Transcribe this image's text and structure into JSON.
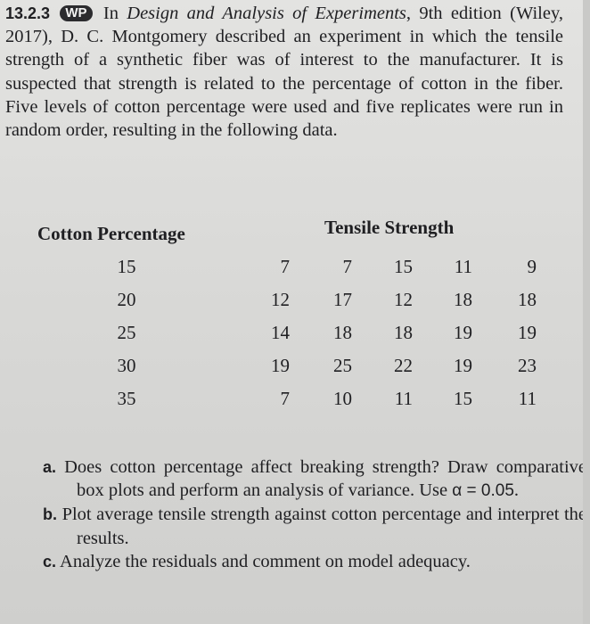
{
  "problem": {
    "number": "13.2.3",
    "badge": "WP",
    "lead": "In",
    "book_title": "Design and Analysis of Experiments",
    "text": ", 9th edition (Wiley, 2017), D. C. Montgomery described an experiment in which the tensile strength of a synthetic fiber was of interest to the manufacturer. It is suspected that strength is related to the percentage of cotton in the fiber. Five levels of cotton percentage were used and five replicates were run in random order, resulting in the following data."
  },
  "table": {
    "col1_header": "Cotton Percentage",
    "col2_header": "Tensile Strength",
    "rows": [
      {
        "pct": "15",
        "values": [
          "7",
          "7",
          "15",
          "11",
          "9"
        ]
      },
      {
        "pct": "20",
        "values": [
          "12",
          "17",
          "12",
          "18",
          "18"
        ]
      },
      {
        "pct": "25",
        "values": [
          "14",
          "18",
          "18",
          "19",
          "19"
        ]
      },
      {
        "pct": "30",
        "values": [
          "19",
          "25",
          "22",
          "19",
          "23"
        ]
      },
      {
        "pct": "35",
        "values": [
          "7",
          "10",
          "11",
          "15",
          "11"
        ]
      }
    ]
  },
  "parts": {
    "a_label": "a.",
    "a_text_1": "Does cotton percentage affect breaking strength? Draw comparative box plots and perform an analysis of variance. Use ",
    "a_alpha": "α = 0.05",
    "a_text_2": ".",
    "b_label": "b.",
    "b_text": "Plot average tensile strength against cotton percentage and interpret the results.",
    "c_label": "c.",
    "c_text": "Analyze the residuals and comment on model adequacy."
  }
}
